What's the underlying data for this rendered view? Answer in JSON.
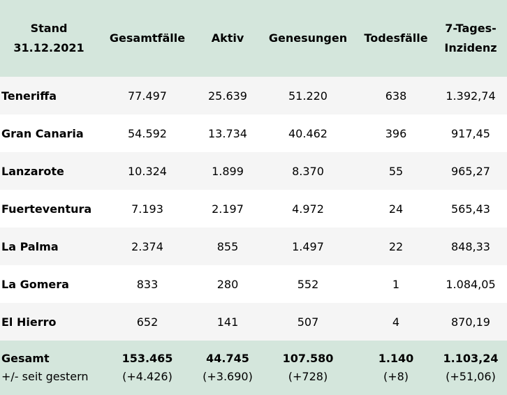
{
  "header": {
    "stand": "Stand\n31.12.2021",
    "gesamtfaelle": "Gesamtfälle",
    "aktiv": "Aktiv",
    "genesungen": "Genesungen",
    "todesfaelle": "Todesfälle",
    "inzidenz": "7-Tages-\nInzidenz"
  },
  "rows": [
    {
      "name": "Teneriffa",
      "gesamt": "77.497",
      "aktiv": "25.639",
      "genesungen": "51.220",
      "tod": "638",
      "inzidenz": "1.392,74"
    },
    {
      "name": "Gran Canaria",
      "gesamt": "54.592",
      "aktiv": "13.734",
      "genesungen": "40.462",
      "tod": "396",
      "inzidenz": "917,45"
    },
    {
      "name": "Lanzarote",
      "gesamt": "10.324",
      "aktiv": "1.899",
      "genesungen": "8.370",
      "tod": "55",
      "inzidenz": "965,27"
    },
    {
      "name": "Fuerteventura",
      "gesamt": "7.193",
      "aktiv": "2.197",
      "genesungen": "4.972",
      "tod": "24",
      "inzidenz": "565,43"
    },
    {
      "name": "La Palma",
      "gesamt": "2.374",
      "aktiv": "855",
      "genesungen": "1.497",
      "tod": "22",
      "inzidenz": "848,33"
    },
    {
      "name": "La Gomera",
      "gesamt": "833",
      "aktiv": "280",
      "genesungen": "552",
      "tod": "1",
      "inzidenz": "1.084,05"
    },
    {
      "name": "El Hierro",
      "gesamt": "652",
      "aktiv": "141",
      "genesungen": "507",
      "tod": "4",
      "inzidenz": "870,19"
    }
  ],
  "total": {
    "name": "Gesamt",
    "name_sub": "+/- seit gestern",
    "gesamt": "153.465",
    "gesamt_delta": "(+4.426)",
    "aktiv": "44.745",
    "aktiv_delta": "(+3.690)",
    "genesungen": "107.580",
    "genesungen_delta": "(+728)",
    "tod": "1.140",
    "tod_delta": "(+8)",
    "inzidenz": "1.103,24",
    "inzidenz_delta": "(+51,06)"
  }
}
